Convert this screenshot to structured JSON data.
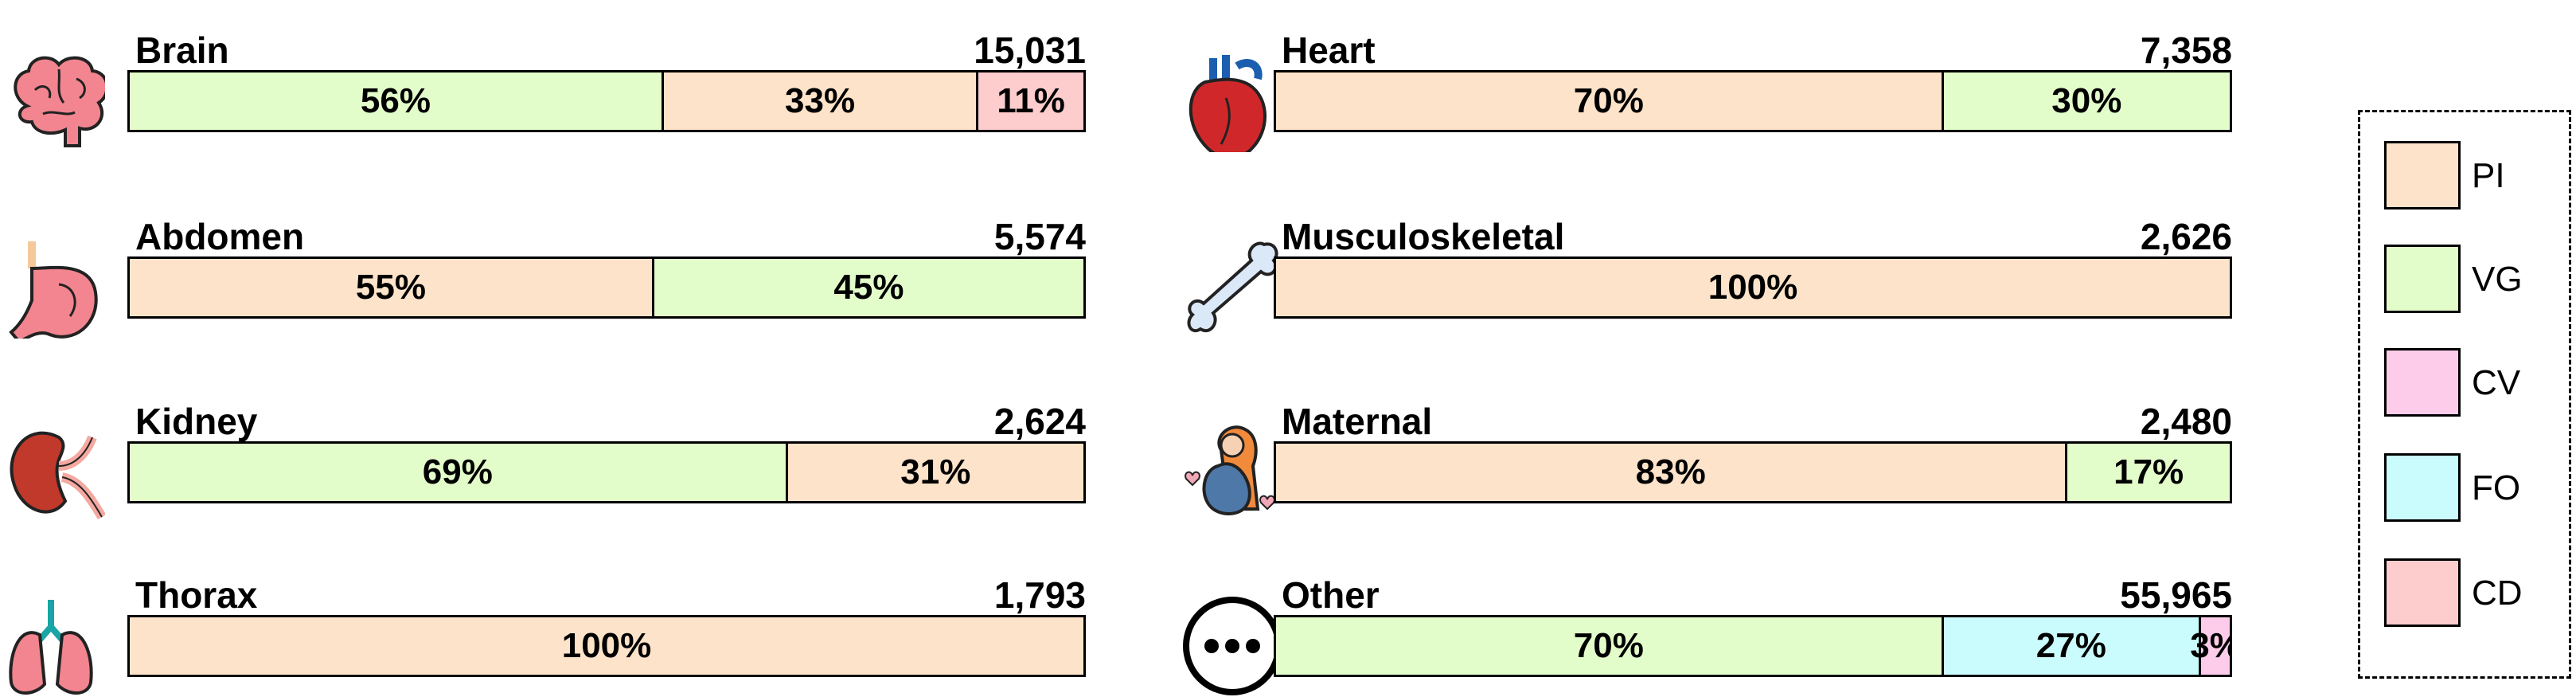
{
  "chart_data": {
    "type": "bar",
    "orientation": "horizontal",
    "stacked": true,
    "normalized_percent": true,
    "legend": {
      "placement": "right",
      "entries": [
        {
          "key": "PI",
          "label": "PI",
          "color": "#fde3c9"
        },
        {
          "key": "VG",
          "label": "VG",
          "color": "#e3fdca"
        },
        {
          "key": "CV",
          "label": "CV",
          "color": "#fdccea"
        },
        {
          "key": "FO",
          "label": "FO",
          "color": "#cbfcfd"
        },
        {
          "key": "CD",
          "label": "CD",
          "color": "#fdcccc"
        }
      ]
    },
    "panels": [
      {
        "id": "brain",
        "title": "Brain",
        "total": "15,031",
        "icon": "brain-icon",
        "segments": [
          {
            "series": "VG",
            "value": 56,
            "label": "56%"
          },
          {
            "series": "PI",
            "value": 33,
            "label": "33%"
          },
          {
            "series": "CD",
            "value": 11,
            "label": "11%"
          }
        ]
      },
      {
        "id": "abdomen",
        "title": "Abdomen",
        "total": "5,574",
        "icon": "stomach-icon",
        "segments": [
          {
            "series": "PI",
            "value": 55,
            "label": "55%"
          },
          {
            "series": "VG",
            "value": 45,
            "label": "45%"
          }
        ]
      },
      {
        "id": "kidney",
        "title": "Kidney",
        "total": "2,624",
        "icon": "kidney-icon",
        "segments": [
          {
            "series": "VG",
            "value": 69,
            "label": "69%"
          },
          {
            "series": "PI",
            "value": 31,
            "label": "31%"
          }
        ]
      },
      {
        "id": "thorax",
        "title": "Thorax",
        "total": "1,793",
        "icon": "lungs-icon",
        "segments": [
          {
            "series": "PI",
            "value": 100,
            "label": "100%"
          }
        ]
      },
      {
        "id": "heart",
        "title": "Heart",
        "total": "7,358",
        "icon": "heart-icon",
        "segments": [
          {
            "series": "PI",
            "value": 70,
            "label": "70%"
          },
          {
            "series": "VG",
            "value": 30,
            "label": "30%"
          }
        ]
      },
      {
        "id": "musculoskeletal",
        "title": "Musculoskeletal",
        "total": "2,626",
        "icon": "bone-icon",
        "segments": [
          {
            "series": "PI",
            "value": 100,
            "label": "100%"
          }
        ]
      },
      {
        "id": "maternal",
        "title": "Maternal",
        "total": "2,480",
        "icon": "pregnant-woman-icon",
        "segments": [
          {
            "series": "PI",
            "value": 83,
            "label": "83%"
          },
          {
            "series": "VG",
            "value": 17,
            "label": "17%"
          }
        ]
      },
      {
        "id": "other",
        "title": "Other",
        "total": "55,965",
        "icon": "more-dots-icon",
        "segments": [
          {
            "series": "VG",
            "value": 70,
            "label": "70%"
          },
          {
            "series": "FO",
            "value": 27,
            "label": "27%"
          },
          {
            "series": "CV",
            "value": 3,
            "label": "3%"
          }
        ]
      }
    ]
  }
}
